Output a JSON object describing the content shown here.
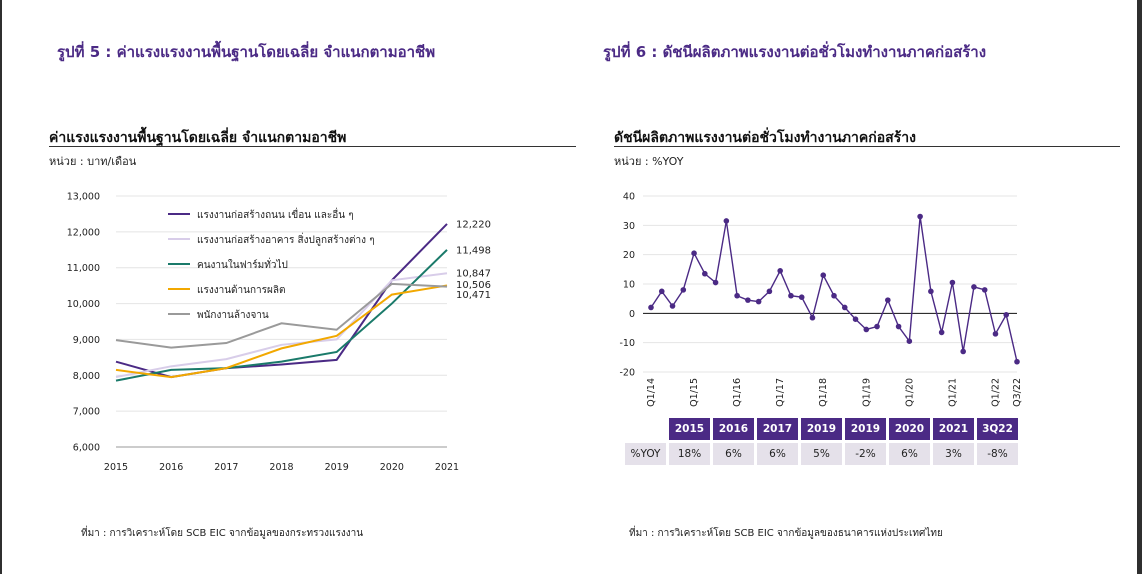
{
  "figures": {
    "left_title": "รูปที่ 5 : ค่าแรงแรงงานพื้นฐานโดยเฉลี่ย จำแนกตามอาชีพ",
    "right_title": "รูปที่ 6 : ดัชนีผลิตภาพแรงงานต่อชั่วโมงทำงานภาคก่อสร้าง"
  },
  "left_panel": {
    "title": "ค่าแรงแรงงานพื้นฐานโดยเฉลี่ย จำแนกตามอาชีพ",
    "unit": "หน่วย : บาท/เดือน",
    "source": "ที่มา : การวิเคราะห์โดย SCB EIC จากข้อมูลของกระทรวงแรงงาน"
  },
  "right_panel": {
    "title": "ดัชนีผลิตภาพแรงงานต่อชั่วโมงทำงานภาคก่อสร้าง",
    "unit": "หน่วย : %YOY",
    "source": "ที่มา : การวิเคราะห์โดย SCB EIC จากข้อมูลของธนาคารแห่งประเทศไทย"
  },
  "yoy_table": {
    "row_label": "%YOY",
    "columns": [
      {
        "period": "2015",
        "value": "18%"
      },
      {
        "period": "2016",
        "value": "6%"
      },
      {
        "period": "2017",
        "value": "6%"
      },
      {
        "period": "2019",
        "value": "5%"
      },
      {
        "period": "2019",
        "value": "-2%"
      },
      {
        "period": "2020",
        "value": "6%"
      },
      {
        "period": "2021",
        "value": "3%"
      },
      {
        "period": "3Q22",
        "value": "-8%"
      }
    ]
  },
  "chart_data": [
    {
      "type": "line",
      "title": "ค่าแรงแรงงานพื้นฐานโดยเฉลี่ย จำแนกตามอาชีพ",
      "ylabel": "หน่วย : บาท/เดือน",
      "x": [
        "2015",
        "2016",
        "2017",
        "2018",
        "2019",
        "2020",
        "2021"
      ],
      "ylim": [
        6000,
        13000
      ],
      "yticks": [
        "6,000",
        "7,000",
        "8,000",
        "9,000",
        "10,000",
        "11,000",
        "12,000",
        "13,000"
      ],
      "grid": true,
      "legend": "top-left",
      "series": [
        {
          "name": "แรงงานก่อสร้างถนน เขื่อน และอื่น ๆ",
          "color": "#4b2a85",
          "values": [
            8380,
            7950,
            8200,
            8300,
            8430,
            10650,
            12220
          ],
          "end_label": "12,220"
        },
        {
          "name": "แรงงานก่อสร้างอาคาร สิ่งปลูกสร้างต่าง ๆ",
          "color": "#d8cde9",
          "values": [
            7950,
            8250,
            8450,
            8850,
            9000,
            10650,
            10847
          ],
          "end_label": "10,847"
        },
        {
          "name": "คนงานในฟาร์มทั่วไป",
          "color": "#1a7a6a",
          "values": [
            7850,
            8150,
            8200,
            8380,
            8650,
            10000,
            11498
          ],
          "end_label": "11,498"
        },
        {
          "name": "แรงงานด้านการผลิต",
          "color": "#f2a800",
          "values": [
            8150,
            7950,
            8200,
            8750,
            9100,
            10250,
            10506
          ],
          "end_label": "10,506"
        },
        {
          "name": "พนักงานล้างจาน",
          "color": "#9a9a9a",
          "values": [
            8980,
            8770,
            8900,
            9450,
            9270,
            10550,
            10471
          ],
          "end_label": "10,471"
        }
      ]
    },
    {
      "type": "line",
      "title": "ดัชนีผลิตภาพแรงงานต่อชั่วโมงทำงานภาคก่อสร้าง",
      "ylabel": "หน่วย : %YOY",
      "ylim": [
        -20,
        40
      ],
      "yticks": [
        "-20",
        "-10",
        "0",
        "10",
        "20",
        "30",
        "40"
      ],
      "grid": true,
      "tick_labels": [
        "Q1/14",
        "Q1/15",
        "Q1/16",
        "Q1/17",
        "Q1/18",
        "Q1/19",
        "Q1/20",
        "Q1/21",
        "Q1/22",
        "Q3/22"
      ],
      "tick_indices": [
        0,
        4,
        8,
        12,
        16,
        20,
        24,
        28,
        32,
        34
      ],
      "series": [
        {
          "name": "",
          "color": "#4b2a85",
          "values": [
            2,
            7.5,
            2.5,
            8,
            20.5,
            13.5,
            10.5,
            31.5,
            6,
            4.5,
            4,
            7.5,
            14.5,
            6,
            5.5,
            -1.5,
            13,
            6,
            2,
            -2,
            -5.5,
            -4.5,
            4.5,
            -4.5,
            -9.5,
            33,
            7.5,
            -6.5,
            10.5,
            -13,
            9,
            8,
            -7,
            -0.5,
            -16.5
          ]
        }
      ]
    }
  ]
}
